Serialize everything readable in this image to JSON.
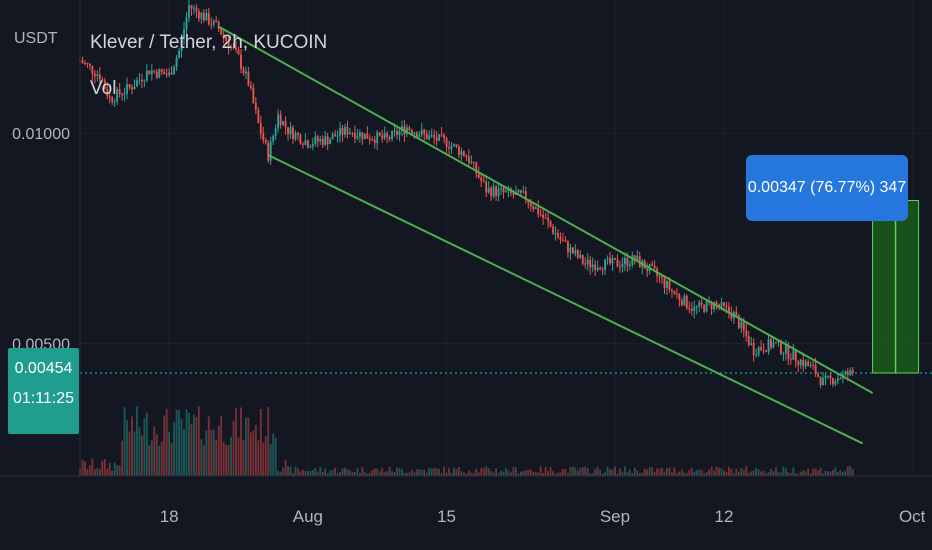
{
  "header": {
    "unit": "USDT",
    "symbol_title": "Klever / Tether, 2h, KUCOIN",
    "volume_label": "Vol"
  },
  "price_badge": {
    "value": "0.00454",
    "countdown": "01:11:25",
    "color": "#1f9e8e"
  },
  "measure": {
    "label": "0.00347 (76.77%) 347",
    "box_color": "#2576dd",
    "fill_color": "#1a5c17",
    "line_color": "#5fd35a"
  },
  "chart_data": {
    "type": "candlestick",
    "symbol": "Klever / Tether",
    "interval": "2h",
    "exchange": "KUCOIN",
    "y_scale": "log",
    "y_tick_labels": [
      "0.01000",
      "0.00500"
    ],
    "x_tick_labels": [
      "18",
      "Aug",
      "15",
      "Sep",
      "12",
      "Oct"
    ],
    "x_range": [
      "2022-07-09",
      "2022-10-03"
    ],
    "y_range": [
      0.0035,
      0.0155
    ],
    "current_price": 0.00454,
    "price_path": [
      [
        "2022-07-09",
        0.0127
      ],
      [
        "2022-07-11",
        0.0121
      ],
      [
        "2022-07-12",
        0.0112
      ],
      [
        "2022-07-14",
        0.0116
      ],
      [
        "2022-07-16",
        0.0123
      ],
      [
        "2022-07-18",
        0.0121
      ],
      [
        "2022-07-19",
        0.0131
      ],
      [
        "2022-07-20",
        0.0152
      ],
      [
        "2022-07-22",
        0.0145
      ],
      [
        "2022-07-23",
        0.0141
      ],
      [
        "2022-07-25",
        0.0128
      ],
      [
        "2022-07-26",
        0.0118
      ],
      [
        "2022-07-27",
        0.0103
      ],
      [
        "2022-07-28",
        0.0093
      ],
      [
        "2022-07-29",
        0.0106
      ],
      [
        "2022-07-30",
        0.0101
      ],
      [
        "2022-08-01",
        0.0097
      ],
      [
        "2022-08-03",
        0.0098
      ],
      [
        "2022-08-05",
        0.0101
      ],
      [
        "2022-08-07",
        0.0099
      ],
      [
        "2022-08-09",
        0.0098
      ],
      [
        "2022-08-11",
        0.0102
      ],
      [
        "2022-08-13",
        0.0099
      ],
      [
        "2022-08-15",
        0.0097
      ],
      [
        "2022-08-17",
        0.0093
      ],
      [
        "2022-08-19",
        0.0083
      ],
      [
        "2022-08-21",
        0.0082
      ],
      [
        "2022-08-23",
        0.0081
      ],
      [
        "2022-08-25",
        0.0075
      ],
      [
        "2022-08-27",
        0.0069
      ],
      [
        "2022-08-29",
        0.0065
      ],
      [
        "2022-09-01",
        0.0065
      ],
      [
        "2022-09-03",
        0.0066
      ],
      [
        "2022-09-05",
        0.0063
      ],
      [
        "2022-09-07",
        0.0059
      ],
      [
        "2022-09-09",
        0.0056
      ],
      [
        "2022-09-11",
        0.0057
      ],
      [
        "2022-09-13",
        0.0055
      ],
      [
        "2022-09-15",
        0.0049
      ],
      [
        "2022-09-17",
        0.005
      ],
      [
        "2022-09-19",
        0.0048
      ],
      [
        "2022-09-21",
        0.0046
      ],
      [
        "2022-09-22",
        0.0044
      ],
      [
        "2022-09-24",
        0.0045
      ],
      [
        "2022-09-25",
        0.00454
      ]
    ],
    "trendlines": {
      "upper": {
        "from": [
          "2022-07-23",
          0.0142
        ],
        "to": [
          "2022-09-27",
          0.00425
        ]
      },
      "lower": {
        "from": [
          "2022-07-28",
          0.0093
        ],
        "to": [
          "2022-09-26",
          0.0036
        ]
      }
    },
    "measurement": {
      "from_price": 0.00454,
      "to_price": 0.00801,
      "change": 0.00347,
      "change_percent": 76.77,
      "ticks": 347,
      "date": "2022-09-27"
    },
    "colors": {
      "up": "#26a69a",
      "down": "#ef5350",
      "trendline": "#4caf50"
    }
  }
}
